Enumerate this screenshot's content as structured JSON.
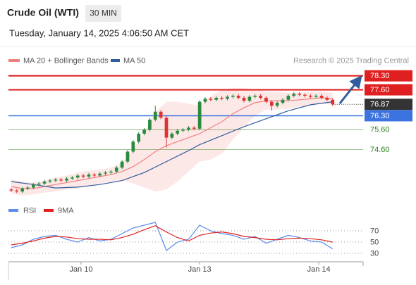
{
  "header": {
    "title": "Crude Oil (WTI)",
    "timeframe": "30 MIN",
    "timestamp": "Tuesday, January 14, 2025 4:06:50 AM CET"
  },
  "credit": "Research © 2025 Trading Central",
  "chart_data": [
    {
      "type": "candlestick",
      "open": [
        72.6,
        72.55,
        72.5,
        72.65,
        72.7,
        72.85,
        72.9,
        73.0,
        73.05,
        73.1,
        73.05,
        73.15,
        73.2,
        73.3,
        73.25,
        73.35,
        73.3,
        73.4,
        73.45,
        73.5,
        73.7,
        74.0,
        74.5,
        75.0,
        75.4,
        75.6,
        76.1,
        76.5,
        76.2,
        75.2,
        75.4,
        75.55,
        75.6,
        75.7,
        75.65,
        77.0,
        77.15,
        77.1,
        77.2,
        77.15,
        77.25,
        77.3,
        77.2,
        77.05,
        77.25,
        77.3,
        77.2,
        77.0,
        76.8,
        76.95,
        77.1,
        77.3,
        77.4,
        77.35,
        77.3,
        77.25,
        77.3,
        77.2,
        77.1
      ],
      "high": [
        72.68,
        72.63,
        72.73,
        72.78,
        72.93,
        72.98,
        73.08,
        73.13,
        73.18,
        73.18,
        73.23,
        73.28,
        73.38,
        73.38,
        73.43,
        73.43,
        73.48,
        73.53,
        73.58,
        73.78,
        74.08,
        74.58,
        75.08,
        75.48,
        75.68,
        76.18,
        76.8,
        76.58,
        76.28,
        75.48,
        75.63,
        75.68,
        75.78,
        75.78,
        77.08,
        77.23,
        77.23,
        77.28,
        77.28,
        77.33,
        77.38,
        77.38,
        77.28,
        77.33,
        77.38,
        77.38,
        77.28,
        77.08,
        77.03,
        77.18,
        77.38,
        77.48,
        77.48,
        77.43,
        77.38,
        77.38,
        77.38,
        77.28,
        77.18
      ],
      "low": [
        72.47,
        72.42,
        72.42,
        72.57,
        72.62,
        72.77,
        72.82,
        72.92,
        72.97,
        72.97,
        72.97,
        73.07,
        73.12,
        73.17,
        73.17,
        73.22,
        73.22,
        73.32,
        73.37,
        73.42,
        73.62,
        73.92,
        74.42,
        74.92,
        75.32,
        75.52,
        76.02,
        76.12,
        74.7,
        75.12,
        75.32,
        75.47,
        75.52,
        75.57,
        75.57,
        76.92,
        77.02,
        77.02,
        77.07,
        77.07,
        77.17,
        77.12,
        76.97,
        76.97,
        77.17,
        77.12,
        76.92,
        76.55,
        76.72,
        76.87,
        77.02,
        77.22,
        77.27,
        77.22,
        77.17,
        77.17,
        77.12,
        77.02,
        76.79
      ],
      "close": [
        72.55,
        72.5,
        72.65,
        72.7,
        72.85,
        72.9,
        73.0,
        73.05,
        73.1,
        73.05,
        73.15,
        73.2,
        73.3,
        73.25,
        73.35,
        73.3,
        73.4,
        73.45,
        73.5,
        73.7,
        74.0,
        74.5,
        75.0,
        75.4,
        75.6,
        76.1,
        76.5,
        76.2,
        75.2,
        75.4,
        75.55,
        75.6,
        75.7,
        75.65,
        77.0,
        77.15,
        77.1,
        77.2,
        77.15,
        77.25,
        77.3,
        77.2,
        77.05,
        77.25,
        77.3,
        77.2,
        77.0,
        76.8,
        76.95,
        77.1,
        77.3,
        77.4,
        77.35,
        77.3,
        77.25,
        77.3,
        77.2,
        77.1,
        76.87
      ],
      "up_color": "#2b8a3e",
      "down_color": "#e03131",
      "series": [
        {
          "name": "MA 20 + Bollinger Bands",
          "color": "#f08080",
          "band_color": "#fde2e2",
          "x": [
            0,
            2,
            4,
            6,
            8,
            10,
            12,
            14,
            16,
            18,
            20,
            22,
            24,
            26,
            28,
            30,
            32,
            34,
            36,
            38,
            40,
            42,
            44,
            46,
            48,
            50,
            52,
            54,
            56,
            58
          ],
          "values": [
            72.75,
            72.65,
            72.65,
            72.75,
            72.85,
            72.95,
            73.05,
            73.15,
            73.25,
            73.35,
            73.5,
            73.75,
            74.1,
            74.5,
            74.8,
            75.0,
            75.2,
            75.4,
            75.7,
            76.0,
            76.4,
            76.7,
            76.95,
            77.05,
            77.05,
            77.05,
            77.1,
            77.15,
            77.2,
            77.15
          ],
          "upper": [
            73.1,
            73.0,
            72.95,
            73.05,
            73.2,
            73.3,
            73.45,
            73.55,
            73.6,
            73.7,
            73.95,
            74.6,
            75.5,
            76.5,
            77.0,
            77.0,
            76.9,
            76.8,
            77.3,
            77.6,
            77.7,
            77.7,
            77.6,
            77.5,
            77.5,
            77.45,
            77.45,
            77.5,
            77.5,
            77.45
          ],
          "lower": [
            72.4,
            72.3,
            72.35,
            72.45,
            72.5,
            72.6,
            72.65,
            72.75,
            72.9,
            73.0,
            73.05,
            72.9,
            72.7,
            72.5,
            72.6,
            73.0,
            73.5,
            74.0,
            74.1,
            74.4,
            75.1,
            75.7,
            76.3,
            76.6,
            76.6,
            76.65,
            76.75,
            76.8,
            76.9,
            76.85
          ]
        },
        {
          "name": "MA 50",
          "color": "#2f5d9e",
          "x": [
            0,
            4,
            8,
            12,
            16,
            20,
            24,
            28,
            32,
            34,
            38,
            42,
            46,
            50,
            54,
            58
          ],
          "values": [
            73.0,
            72.85,
            72.68,
            72.72,
            72.85,
            73.05,
            73.45,
            74.0,
            74.55,
            74.85,
            75.3,
            75.75,
            76.15,
            76.55,
            76.85,
            77.0
          ]
        }
      ],
      "levels": [
        {
          "value": 78.3,
          "label": "78.30",
          "color": "#e02020",
          "boxed": true
        },
        {
          "value": 77.6,
          "label": "77.60",
          "color": "#e02020",
          "boxed": true
        },
        {
          "value": 76.3,
          "label": "76.30",
          "color": "#3b73e0",
          "boxed": true
        },
        {
          "value": 75.6,
          "label": "75.60",
          "color": "#2f7d1e",
          "boxed": false
        },
        {
          "value": 74.6,
          "label": "74.60",
          "color": "#2f7d1e",
          "boxed": false
        }
      ],
      "last_price": {
        "value": 76.87,
        "label": "76.87"
      },
      "xlim": [
        -0.5,
        63.5
      ],
      "xticks": [
        {
          "value": 12.6,
          "label": "Jan 10"
        },
        {
          "value": 34,
          "label": "Jan 13"
        },
        {
          "value": 55.5,
          "label": "Jan 14"
        }
      ],
      "ylim": [
        72.4,
        78.75
      ]
    },
    {
      "type": "line",
      "series": [
        {
          "name": "RSI",
          "color": "#5b8def",
          "x": [
            0,
            2,
            4,
            6,
            8,
            10,
            12,
            14,
            16,
            18,
            20,
            22,
            24,
            26,
            28,
            30,
            32,
            34,
            36,
            38,
            40,
            42,
            44,
            46,
            48,
            50,
            52,
            54,
            56,
            58
          ],
          "values": [
            40,
            45,
            55,
            60,
            62,
            55,
            50,
            58,
            52,
            55,
            65,
            75,
            80,
            85,
            35,
            50,
            55,
            80,
            70,
            65,
            62,
            55,
            60,
            48,
            55,
            62,
            58,
            52,
            50,
            38
          ]
        },
        {
          "name": "9MA",
          "color": "#e02020",
          "x": [
            0,
            2,
            4,
            6,
            8,
            10,
            12,
            14,
            16,
            18,
            20,
            22,
            24,
            26,
            28,
            30,
            32,
            34,
            36,
            38,
            40,
            42,
            44,
            46,
            48,
            50,
            52,
            54,
            56,
            58
          ],
          "values": [
            45,
            48,
            52,
            57,
            60,
            59,
            56,
            55,
            55,
            54,
            58,
            64,
            72,
            79,
            68,
            58,
            52,
            62,
            66,
            68,
            65,
            60,
            58,
            55,
            54,
            56,
            57,
            56,
            54,
            50
          ]
        }
      ],
      "xlim": [
        -0.5,
        63.5
      ],
      "ylim": [
        15,
        95
      ],
      "yticks": [
        30,
        50,
        70
      ]
    }
  ]
}
